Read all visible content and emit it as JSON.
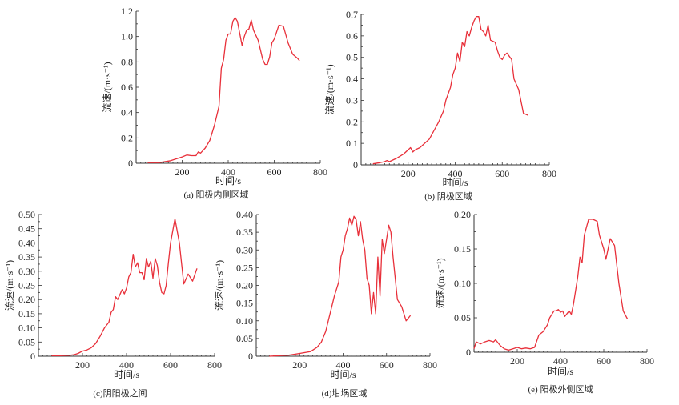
{
  "chart_data": [
    {
      "type": "line",
      "caption": "(a) 阳极内侧区域",
      "xlabel": "时间/s",
      "ylabel": "流速/(m·s⁻¹)",
      "xlim": [
        0,
        800
      ],
      "ylim": [
        0,
        1.2
      ],
      "xticks": [
        "200",
        "400",
        "600",
        "800"
      ],
      "yticks": [
        "0",
        "0.2",
        "0.4",
        "0.6",
        "0.8",
        "1.0",
        "1.2"
      ],
      "color": "#e8303a",
      "points": [
        [
          50,
          0.005
        ],
        [
          100,
          0.005
        ],
        [
          150,
          0.02
        ],
        [
          200,
          0.05
        ],
        [
          220,
          0.065
        ],
        [
          240,
          0.06
        ],
        [
          260,
          0.06
        ],
        [
          270,
          0.09
        ],
        [
          280,
          0.08
        ],
        [
          300,
          0.12
        ],
        [
          320,
          0.18
        ],
        [
          340,
          0.3
        ],
        [
          360,
          0.45
        ],
        [
          370,
          0.75
        ],
        [
          380,
          0.82
        ],
        [
          390,
          0.97
        ],
        [
          400,
          1.02
        ],
        [
          410,
          1.02
        ],
        [
          420,
          1.12
        ],
        [
          430,
          1.15
        ],
        [
          440,
          1.12
        ],
        [
          460,
          0.93
        ],
        [
          470,
          1.0
        ],
        [
          480,
          1.05
        ],
        [
          490,
          1.06
        ],
        [
          500,
          1.13
        ],
        [
          510,
          1.05
        ],
        [
          530,
          0.97
        ],
        [
          550,
          0.82
        ],
        [
          560,
          0.78
        ],
        [
          570,
          0.78
        ],
        [
          580,
          0.84
        ],
        [
          590,
          0.95
        ],
        [
          600,
          0.98
        ],
        [
          620,
          1.09
        ],
        [
          640,
          1.08
        ],
        [
          660,
          0.95
        ],
        [
          680,
          0.86
        ],
        [
          700,
          0.83
        ],
        [
          710,
          0.81
        ]
      ]
    },
    {
      "type": "line",
      "caption": "(b) 阴极区域",
      "xlabel": "时间/s",
      "ylabel": "流速/(m·s⁻¹)",
      "xlim": [
        0,
        800
      ],
      "ylim": [
        0,
        0.7
      ],
      "xticks": [
        "200",
        "400",
        "600",
        "800"
      ],
      "yticks": [
        "0",
        "0.1",
        "0.2",
        "0.3",
        "0.4",
        "0.5",
        "0.6",
        "0.7"
      ],
      "color": "#e8303a",
      "points": [
        [
          50,
          0.005
        ],
        [
          80,
          0.01
        ],
        [
          100,
          0.015
        ],
        [
          110,
          0.02
        ],
        [
          120,
          0.015
        ],
        [
          150,
          0.03
        ],
        [
          180,
          0.05
        ],
        [
          200,
          0.07
        ],
        [
          210,
          0.08
        ],
        [
          220,
          0.06
        ],
        [
          230,
          0.07
        ],
        [
          250,
          0.08
        ],
        [
          270,
          0.1
        ],
        [
          290,
          0.12
        ],
        [
          310,
          0.16
        ],
        [
          330,
          0.2
        ],
        [
          350,
          0.25
        ],
        [
          360,
          0.3
        ],
        [
          380,
          0.36
        ],
        [
          390,
          0.42
        ],
        [
          400,
          0.45
        ],
        [
          410,
          0.52
        ],
        [
          420,
          0.48
        ],
        [
          430,
          0.57
        ],
        [
          440,
          0.55
        ],
        [
          450,
          0.62
        ],
        [
          460,
          0.6
        ],
        [
          470,
          0.64
        ],
        [
          480,
          0.67
        ],
        [
          490,
          0.69
        ],
        [
          500,
          0.69
        ],
        [
          510,
          0.63
        ],
        [
          520,
          0.62
        ],
        [
          530,
          0.6
        ],
        [
          540,
          0.65
        ],
        [
          550,
          0.58
        ],
        [
          570,
          0.57
        ],
        [
          580,
          0.53
        ],
        [
          590,
          0.5
        ],
        [
          600,
          0.49
        ],
        [
          610,
          0.51
        ],
        [
          620,
          0.52
        ],
        [
          640,
          0.49
        ],
        [
          650,
          0.4
        ],
        [
          670,
          0.35
        ],
        [
          690,
          0.24
        ],
        [
          710,
          0.23
        ]
      ]
    },
    {
      "type": "line",
      "caption": "(c)阴阳极之间",
      "xlabel": "时间/s",
      "ylabel": "流速/(m·s⁻¹)",
      "xlim": [
        0,
        800
      ],
      "ylim": [
        0,
        0.5
      ],
      "xticks": [
        "200",
        "400",
        "600",
        "800"
      ],
      "yticks": [
        "0",
        "0.05",
        "0.10",
        "0.15",
        "0.20",
        "0.25",
        "0.30",
        "0.35",
        "0.40",
        "0.45",
        "0.50"
      ],
      "color": "#e8303a",
      "points": [
        [
          60,
          0.002
        ],
        [
          100,
          0.002
        ],
        [
          140,
          0.003
        ],
        [
          160,
          0.005
        ],
        [
          180,
          0.01
        ],
        [
          200,
          0.018
        ],
        [
          220,
          0.022
        ],
        [
          240,
          0.03
        ],
        [
          260,
          0.045
        ],
        [
          280,
          0.07
        ],
        [
          300,
          0.1
        ],
        [
          320,
          0.12
        ],
        [
          330,
          0.155
        ],
        [
          340,
          0.165
        ],
        [
          350,
          0.21
        ],
        [
          360,
          0.2
        ],
        [
          380,
          0.235
        ],
        [
          390,
          0.22
        ],
        [
          400,
          0.24
        ],
        [
          410,
          0.28
        ],
        [
          420,
          0.295
        ],
        [
          430,
          0.36
        ],
        [
          440,
          0.315
        ],
        [
          450,
          0.33
        ],
        [
          460,
          0.295
        ],
        [
          470,
          0.295
        ],
        [
          480,
          0.27
        ],
        [
          490,
          0.345
        ],
        [
          500,
          0.315
        ],
        [
          510,
          0.335
        ],
        [
          520,
          0.275
        ],
        [
          530,
          0.345
        ],
        [
          540,
          0.32
        ],
        [
          550,
          0.26
        ],
        [
          560,
          0.225
        ],
        [
          570,
          0.22
        ],
        [
          580,
          0.25
        ],
        [
          590,
          0.33
        ],
        [
          600,
          0.4
        ],
        [
          620,
          0.485
        ],
        [
          640,
          0.4
        ],
        [
          660,
          0.255
        ],
        [
          680,
          0.29
        ],
        [
          700,
          0.265
        ],
        [
          720,
          0.31
        ]
      ]
    },
    {
      "type": "line",
      "caption": "(d)坩埚区域",
      "xlabel": "时间/s",
      "ylabel": "流速/(m·s⁻¹)",
      "xlim": [
        0,
        800
      ],
      "ylim": [
        0,
        0.4
      ],
      "xticks": [
        "200",
        "400",
        "600",
        "800"
      ],
      "yticks": [
        "0",
        "0.05",
        "0.10",
        "0.15",
        "0.20",
        "0.25",
        "0.30",
        "0.35",
        "0.40"
      ],
      "color": "#e8303a",
      "points": [
        [
          60,
          0
        ],
        [
          150,
          0.003
        ],
        [
          200,
          0.008
        ],
        [
          250,
          0.013
        ],
        [
          280,
          0.025
        ],
        [
          300,
          0.04
        ],
        [
          320,
          0.07
        ],
        [
          340,
          0.12
        ],
        [
          360,
          0.17
        ],
        [
          380,
          0.21
        ],
        [
          390,
          0.28
        ],
        [
          400,
          0.3
        ],
        [
          410,
          0.34
        ],
        [
          420,
          0.36
        ],
        [
          430,
          0.39
        ],
        [
          440,
          0.37
        ],
        [
          450,
          0.395
        ],
        [
          460,
          0.385
        ],
        [
          470,
          0.34
        ],
        [
          480,
          0.38
        ],
        [
          490,
          0.33
        ],
        [
          500,
          0.3
        ],
        [
          510,
          0.22
        ],
        [
          520,
          0.2
        ],
        [
          530,
          0.12
        ],
        [
          540,
          0.18
        ],
        [
          550,
          0.12
        ],
        [
          560,
          0.28
        ],
        [
          570,
          0.17
        ],
        [
          580,
          0.33
        ],
        [
          590,
          0.29
        ],
        [
          610,
          0.37
        ],
        [
          620,
          0.35
        ],
        [
          630,
          0.28
        ],
        [
          650,
          0.16
        ],
        [
          670,
          0.14
        ],
        [
          690,
          0.1
        ],
        [
          710,
          0.115
        ]
      ]
    },
    {
      "type": "line",
      "caption": "(e) 阳极外侧区域",
      "xlabel": "时间/s",
      "ylabel": "流速/(m·s⁻¹)",
      "xlim": [
        0,
        800
      ],
      "ylim": [
        0,
        0.2
      ],
      "xticks": [
        "200",
        "400",
        "600",
        "800"
      ],
      "yticks": [
        "0",
        "0.05",
        "0.10",
        "0.15",
        "0.20"
      ],
      "color": "#e8303a",
      "points": [
        [
          0,
          0.005
        ],
        [
          10,
          0.015
        ],
        [
          30,
          0.012
        ],
        [
          50,
          0.015
        ],
        [
          70,
          0.017
        ],
        [
          90,
          0.015
        ],
        [
          100,
          0.018
        ],
        [
          120,
          0.01
        ],
        [
          140,
          0.005
        ],
        [
          160,
          0.003
        ],
        [
          180,
          0.005
        ],
        [
          200,
          0.007
        ],
        [
          220,
          0.005
        ],
        [
          240,
          0.006
        ],
        [
          260,
          0.005
        ],
        [
          280,
          0.007
        ],
        [
          300,
          0.025
        ],
        [
          320,
          0.03
        ],
        [
          340,
          0.04
        ],
        [
          350,
          0.05
        ],
        [
          360,
          0.055
        ],
        [
          370,
          0.06
        ],
        [
          380,
          0.06
        ],
        [
          390,
          0.062
        ],
        [
          400,
          0.058
        ],
        [
          410,
          0.06
        ],
        [
          420,
          0.052
        ],
        [
          440,
          0.06
        ],
        [
          450,
          0.055
        ],
        [
          460,
          0.07
        ],
        [
          480,
          0.11
        ],
        [
          490,
          0.138
        ],
        [
          500,
          0.13
        ],
        [
          510,
          0.17
        ],
        [
          530,
          0.193
        ],
        [
          550,
          0.193
        ],
        [
          570,
          0.19
        ],
        [
          580,
          0.17
        ],
        [
          600,
          0.15
        ],
        [
          610,
          0.135
        ],
        [
          620,
          0.15
        ],
        [
          630,
          0.165
        ],
        [
          650,
          0.155
        ],
        [
          670,
          0.1
        ],
        [
          690,
          0.06
        ],
        [
          710,
          0.048
        ]
      ]
    }
  ]
}
